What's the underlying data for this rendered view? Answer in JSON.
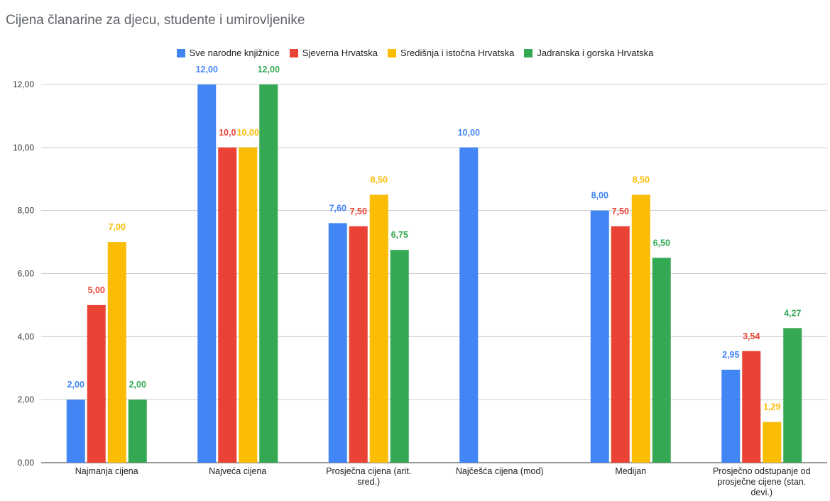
{
  "chart_data": {
    "type": "bar",
    "title": "Cijena članarine za djecu, studente i umirovljenike",
    "xlabel": "",
    "ylabel": "",
    "ylim": [
      0,
      12
    ],
    "yticks": [
      "0,00",
      "2,00",
      "4,00",
      "6,00",
      "8,00",
      "10,00",
      "12,00"
    ],
    "grid": true,
    "legend_position": "top-center",
    "categories": [
      [
        "Najmanja cijena"
      ],
      [
        "Najveća cijena"
      ],
      [
        "Prosječna cijena (arit.",
        "sred.)"
      ],
      [
        "Najčešća cijena (mod)"
      ],
      [
        "Medijan"
      ],
      [
        "Prosječno odstupanje od",
        "prosječne cijene (stan.",
        "devi.)"
      ]
    ],
    "series": [
      {
        "name": "Sve narodne knjižnice",
        "color": "#4285f4",
        "values": [
          2.0,
          12.0,
          7.6,
          10.0,
          8.0,
          2.95
        ],
        "labels": [
          "2,00",
          "12,00",
          "7,60",
          "10,00",
          "8,00",
          "2,95"
        ]
      },
      {
        "name": "Sjeverna Hrvatska",
        "color": "#ea4335",
        "values": [
          5.0,
          10.0,
          7.5,
          null,
          7.5,
          3.54
        ],
        "labels": [
          "5,00",
          "10,0",
          "7,50",
          null,
          "7,50",
          "3,54"
        ]
      },
      {
        "name": "Središnja i istočna Hrvatska",
        "color": "#fbbc04",
        "values": [
          7.0,
          10.0,
          8.5,
          null,
          8.5,
          1.29
        ],
        "labels": [
          "7,00",
          "10,00",
          "8,50",
          null,
          "8,50",
          "1,29"
        ]
      },
      {
        "name": "Jadranska i gorska Hrvatska",
        "color": "#34a853",
        "values": [
          2.0,
          12.0,
          6.75,
          null,
          6.5,
          4.27
        ],
        "labels": [
          "2,00",
          "12,00",
          "6,75",
          null,
          "6,50",
          "4,27"
        ]
      }
    ]
  }
}
